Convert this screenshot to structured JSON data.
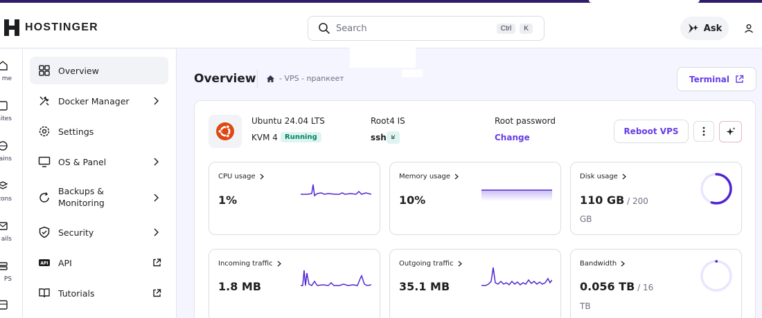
{
  "header": {
    "brand": "HOSTINGER",
    "search_placeholder": "Search",
    "shortcut_1": "Ctrl",
    "shortcut_2": "K",
    "ask_label": "Ask"
  },
  "rail": [
    "me",
    "osites",
    "nains",
    "zons",
    "ails",
    "PS",
    ""
  ],
  "sidebar": {
    "items": [
      {
        "label": "Overview",
        "icon": "grid-icon"
      },
      {
        "label": "Docker Manager",
        "icon": "tools-icon"
      },
      {
        "label": "Settings",
        "icon": "gear-icon"
      },
      {
        "label": "OS & Panel",
        "icon": "monitor-icon"
      },
      {
        "label": "Backups &",
        "label2": "Monitoring",
        "icon": "refresh-icon"
      },
      {
        "label": "Security",
        "icon": "shield-icon"
      },
      {
        "label": "API",
        "icon": "api-icon"
      },
      {
        "label": "Tutorials",
        "icon": "book-icon"
      }
    ]
  },
  "main": {
    "title": "Overview",
    "breadcrumb": "- VPS - npanкеет",
    "terminal_label": "Terminal"
  },
  "vps": {
    "os": "Ubuntu 24.04 LTS",
    "plan": "KVM 4",
    "status": "Running",
    "root_label": "Root4 IS",
    "root_value": "ssh ı",
    "ssh_tag": "ʁ",
    "password_label": "Root password",
    "password_action": "Change",
    "reboot_label": "Reboot VPS"
  },
  "metrics": {
    "cpu": {
      "title": "CPU usage",
      "value": "1%"
    },
    "memory": {
      "title": "Memory usage",
      "value": "10%"
    },
    "disk": {
      "title": "Disk usage",
      "value": "110 GB",
      "total": " / 200",
      "unit": "GB",
      "fraction": 0.55
    },
    "incoming": {
      "title": "Incoming traffic",
      "value": "1.8 MB"
    },
    "outgoing": {
      "title": "Outgoing traffic",
      "value": "35.1 MB"
    },
    "bandwidth": {
      "title": "Bandwidth",
      "value": "0.056 TB",
      "total": " / 16",
      "unit": "TB",
      "fraction": 0.0035
    }
  },
  "colors": {
    "accent": "#673de6",
    "running_text": "#008361",
    "running_bg": "#def4f0"
  }
}
